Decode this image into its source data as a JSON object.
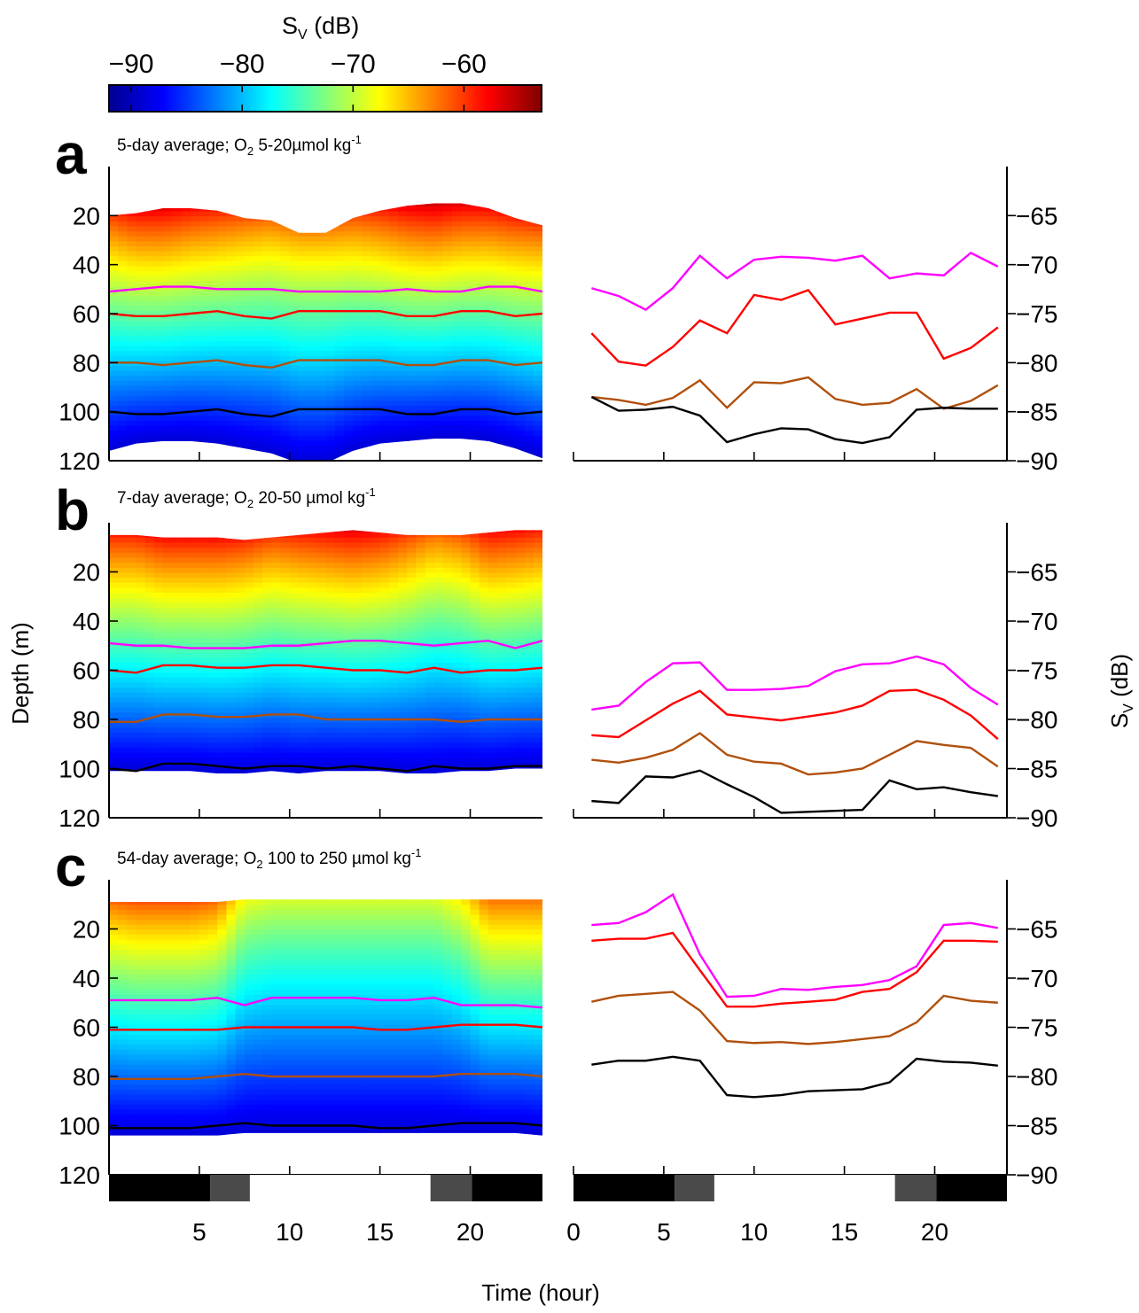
{
  "colorbar": {
    "title": "S",
    "title_sub": "V",
    "title_unit": " (dB)",
    "range": [
      -92,
      -53
    ],
    "ticks": [
      -90,
      -80,
      -70,
      -60
    ],
    "tick_labels": [
      "−90",
      "−80",
      "−70",
      "−60"
    ],
    "colormap": [
      "#00008f",
      "#0000ff",
      "#0080ff",
      "#00ffff",
      "#80ff80",
      "#ffff00",
      "#ff8000",
      "#ff0000",
      "#800000"
    ]
  },
  "axes": {
    "left_ylabel": "Depth (m)",
    "right_ylabel_main": "S",
    "right_ylabel_sub": "V",
    "right_ylabel_unit": " (dB)",
    "xlabel": "Time (hour)"
  },
  "light_bar": {
    "segments": [
      {
        "from": 0,
        "to": 5.6,
        "color": "#000000"
      },
      {
        "from": 5.6,
        "to": 7.8,
        "color": "#4a4a4a"
      },
      {
        "from": 7.8,
        "to": 17.8,
        "color": "#ffffff"
      },
      {
        "from": 17.8,
        "to": 20.1,
        "color": "#4a4a4a"
      },
      {
        "from": 20.1,
        "to": 24,
        "color": "#000000"
      }
    ]
  },
  "chart_data": [
    {
      "type": "heatmap",
      "panel": "a",
      "title": "5-day average; O",
      "title_sub": "2",
      "title_rest": " 5-20µmol kg",
      "title_sup": "-1",
      "left": {
        "xlim": [
          0,
          24
        ],
        "ylim": [
          120,
          0
        ],
        "xticks": [
          5,
          10,
          15,
          20
        ],
        "yticks": [
          20,
          40,
          60,
          80,
          100,
          120
        ],
        "x": [
          0,
          1.5,
          3,
          4.5,
          6,
          7.5,
          9,
          10.5,
          12,
          13.5,
          15,
          16.5,
          18,
          19.5,
          21,
          22.5,
          24
        ],
        "top_depth": [
          20,
          19,
          17,
          17,
          18,
          21,
          22,
          27,
          27,
          21,
          18,
          16,
          15,
          15,
          17,
          21,
          24
        ],
        "bottom_depth": [
          116,
          113,
          112,
          112,
          113,
          115,
          117,
          121,
          121,
          116,
          113,
          112,
          111,
          111,
          112,
          115,
          119
        ],
        "peak_sv": [
          -60,
          -58,
          -57,
          -58,
          -59,
          -61,
          -62,
          -63,
          -63,
          -61,
          -59,
          -57,
          -56,
          -57,
          -58,
          -59,
          -60
        ],
        "isolines": [
          {
            "name": "magenta",
            "color": "#ff00ff",
            "depth": [
              51,
              50,
              49,
              49,
              50,
              50,
              50,
              51,
              51,
              51,
              51,
              50,
              51,
              51,
              49,
              49,
              51
            ]
          },
          {
            "name": "red",
            "color": "#ff0000",
            "depth": [
              60,
              61,
              61,
              60,
              59,
              61,
              62,
              59,
              59,
              59,
              59,
              61,
              61,
              59,
              59,
              61,
              60
            ]
          },
          {
            "name": "brown",
            "color": "#b0500c",
            "depth": [
              80,
              80,
              81,
              80,
              79,
              81,
              82,
              79,
              79,
              79,
              79,
              81,
              81,
              79,
              79,
              81,
              80
            ]
          },
          {
            "name": "black",
            "color": "#000000",
            "depth": [
              100,
              101,
              101,
              100,
              99,
              101,
              102,
              99,
              99,
              99,
              99,
              101,
              101,
              99,
              99,
              101,
              100
            ]
          }
        ]
      },
      "right": {
        "xlim": [
          0,
          24
        ],
        "ylim": [
          -90,
          -60
        ],
        "xticks": [
          0,
          5,
          10,
          15,
          20
        ],
        "yticks": [
          -90,
          -85,
          -80,
          -75,
          -70,
          -65
        ],
        "ytick_labels": [
          "−90",
          "−85",
          "−80",
          "−75",
          "−70",
          "−65"
        ],
        "x": [
          1,
          2.5,
          4,
          5.5,
          7,
          8.5,
          10,
          11.5,
          13,
          14.5,
          16,
          17.5,
          19,
          20.5,
          22,
          23.5
        ],
        "series": [
          {
            "name": "magenta",
            "color": "#ff00ff",
            "values": [
              -72.4,
              -73.2,
              -74.6,
              -72.4,
              -69.1,
              -71.4,
              -69.5,
              -69.2,
              -69.3,
              -69.6,
              -69.1,
              -71.4,
              -70.9,
              -71.1,
              -68.8,
              -70.2
            ]
          },
          {
            "name": "red",
            "color": "#ff0000",
            "values": [
              -77,
              -79.9,
              -80.3,
              -78.4,
              -75.7,
              -77,
              -73.1,
              -73.6,
              -72.6,
              -76.1,
              -75.5,
              -74.9,
              -74.9,
              -79.6,
              -78.5,
              -76.4
            ]
          },
          {
            "name": "brown",
            "color": "#b0500c",
            "values": [
              -83.5,
              -83.8,
              -84.3,
              -83.6,
              -81.8,
              -84.6,
              -82,
              -82.1,
              -81.5,
              -83.7,
              -84.3,
              -84.1,
              -82.7,
              -84.7,
              -83.9,
              -82.3
            ]
          },
          {
            "name": "black",
            "color": "#000000",
            "values": [
              -83.5,
              -84.9,
              -84.8,
              -84.5,
              -85.4,
              -88.1,
              -87.3,
              -86.7,
              -86.8,
              -87.8,
              -88.2,
              -87.6,
              -84.8,
              -84.6,
              -84.7,
              -84.7
            ]
          }
        ]
      }
    },
    {
      "type": "heatmap",
      "panel": "b",
      "title": "7-day average; O",
      "title_sub": "2",
      "title_rest": " 20-50 µmol kg",
      "title_sup": "-1",
      "left": {
        "xlim": [
          0,
          24
        ],
        "ylim": [
          120,
          0
        ],
        "xticks": [
          5,
          10,
          15,
          20
        ],
        "yticks": [
          20,
          40,
          60,
          80,
          100,
          120
        ],
        "x": [
          0,
          1.5,
          3,
          4.5,
          6,
          7.5,
          9,
          10.5,
          12,
          13.5,
          15,
          16.5,
          18,
          19.5,
          21,
          22.5,
          24
        ],
        "top_depth": [
          5,
          5,
          6,
          6,
          6,
          7,
          6,
          5,
          4,
          3,
          4,
          5,
          5,
          5,
          4,
          3,
          3
        ],
        "bottom_depth": [
          101,
          101,
          101,
          101,
          102,
          102,
          101,
          102,
          101,
          101,
          101,
          102,
          102,
          101,
          101,
          100,
          100
        ],
        "peak_sv": [
          -59,
          -59,
          -58,
          -58,
          -58,
          -59,
          -60,
          -59,
          -58,
          -57,
          -58,
          -60,
          -62,
          -61,
          -58,
          -58,
          -59
        ],
        "isolines": [
          {
            "name": "magenta",
            "color": "#ff00ff",
            "depth": [
              49,
              50,
              50,
              51,
              51,
              51,
              50,
              50,
              49,
              48,
              48,
              49,
              50,
              49,
              48,
              51,
              48
            ]
          },
          {
            "name": "red",
            "color": "#ff0000",
            "depth": [
              60,
              61,
              58,
              58,
              59,
              59,
              58,
              58,
              59,
              60,
              60,
              61,
              59,
              61,
              60,
              60,
              59
            ]
          },
          {
            "name": "brown",
            "color": "#b0500c",
            "depth": [
              81,
              81,
              78,
              78,
              79,
              79,
              78,
              78,
              80,
              80,
              80,
              80,
              80,
              81,
              80,
              80,
              80
            ]
          },
          {
            "name": "black",
            "color": "#000000",
            "depth": [
              100,
              101,
              98,
              98,
              99,
              100,
              99,
              99,
              100,
              99,
              100,
              101,
              99,
              100,
              100,
              99,
              99
            ]
          }
        ]
      },
      "right": {
        "xlim": [
          0,
          24
        ],
        "ylim": [
          -90,
          -60
        ],
        "xticks": [
          0,
          5,
          10,
          15,
          20
        ],
        "yticks": [
          -90,
          -85,
          -80,
          -75,
          -70,
          -65
        ],
        "ytick_labels": [
          "−90",
          "−85",
          "−80",
          "−75",
          "−70",
          "−65"
        ],
        "x": [
          1,
          2.5,
          4,
          5.5,
          7,
          8.5,
          10,
          11.5,
          13,
          14.5,
          16,
          17.5,
          19,
          20.5,
          22,
          23.5
        ],
        "series": [
          {
            "name": "magenta",
            "color": "#ff00ff",
            "values": [
              -79,
              -78.6,
              -76.2,
              -74.3,
              -74.2,
              -77,
              -77,
              -76.9,
              -76.6,
              -75.1,
              -74.4,
              -74.3,
              -73.6,
              -74.4,
              -76.8,
              -78.5
            ]
          },
          {
            "name": "red",
            "color": "#ff0000",
            "values": [
              -81.6,
              -81.8,
              -80.1,
              -78.4,
              -77.1,
              -79.5,
              -79.8,
              -80.1,
              -79.7,
              -79.3,
              -78.6,
              -77.1,
              -77,
              -78,
              -79.6,
              -82
            ]
          },
          {
            "name": "brown",
            "color": "#b0500c",
            "values": [
              -84.1,
              -84.4,
              -83.9,
              -83.1,
              -81.4,
              -83.6,
              -84.3,
              -84.5,
              -85.6,
              -85.4,
              -85,
              -83.6,
              -82.2,
              -82.6,
              -82.9,
              -84.8
            ]
          },
          {
            "name": "black",
            "color": "#000000",
            "values": [
              -88.3,
              -88.5,
              -85.8,
              -85.9,
              -85.2,
              -86.6,
              -87.9,
              -89.5,
              -89.4,
              -89.3,
              -89.2,
              -86.2,
              -87.1,
              -86.9,
              -87.4,
              -87.8
            ]
          }
        ]
      }
    },
    {
      "type": "heatmap",
      "panel": "c",
      "title": "54-day average; O",
      "title_sub": "2",
      "title_rest": " 100 to 250 µmol kg",
      "title_sup": "-1",
      "left": {
        "xlim": [
          0,
          24
        ],
        "ylim": [
          120,
          0
        ],
        "xticks": [
          5,
          10,
          15,
          20
        ],
        "yticks": [
          20,
          40,
          60,
          80,
          100,
          120
        ],
        "x": [
          0,
          1.5,
          3,
          4.5,
          6,
          7.5,
          9,
          10.5,
          12,
          13.5,
          15,
          16.5,
          18,
          19.5,
          21,
          22.5,
          24
        ],
        "top_depth": [
          9,
          9,
          9,
          9,
          9,
          8,
          8,
          8,
          8,
          8,
          8,
          8,
          8,
          8,
          8,
          8,
          8
        ],
        "bottom_depth": [
          104,
          104,
          104,
          104,
          104,
          103,
          103,
          103,
          103,
          103,
          103,
          103,
          103,
          103,
          103,
          103,
          104
        ],
        "peak_sv": [
          -62,
          -61,
          -61,
          -61,
          -62,
          -68,
          -69,
          -69,
          -69,
          -69,
          -69,
          -69,
          -69,
          -67,
          -62,
          -62,
          -62
        ],
        "isolines": [
          {
            "name": "magenta",
            "color": "#ff00ff",
            "depth": [
              49,
              49,
              49,
              49,
              48,
              51,
              48,
              48,
              48,
              48,
              49,
              49,
              48,
              51,
              51,
              51,
              52
            ]
          },
          {
            "name": "red",
            "color": "#ff0000",
            "depth": [
              61,
              61,
              61,
              61,
              61,
              60,
              60,
              60,
              60,
              60,
              61,
              61,
              60,
              59,
              59,
              59,
              60
            ]
          },
          {
            "name": "brown",
            "color": "#b0500c",
            "depth": [
              81,
              81,
              81,
              81,
              80,
              79,
              80,
              80,
              80,
              80,
              80,
              80,
              80,
              79,
              79,
              79,
              80
            ]
          },
          {
            "name": "black",
            "color": "#000000",
            "depth": [
              101,
              101,
              101,
              101,
              100,
              99,
              100,
              100,
              100,
              100,
              101,
              101,
              100,
              99,
              99,
              99,
              100
            ]
          }
        ]
      },
      "right": {
        "xlim": [
          0,
          24
        ],
        "ylim": [
          -90,
          -60
        ],
        "xticks": [
          0,
          5,
          10,
          15,
          20
        ],
        "yticks": [
          -90,
          -85,
          -80,
          -75,
          -70,
          -65
        ],
        "ytick_labels": [
          "−90",
          "−85",
          "−80",
          "−75",
          "−70",
          "−65"
        ],
        "x": [
          1,
          2.5,
          4,
          5.5,
          7,
          8.5,
          10,
          11.5,
          13,
          14.5,
          16,
          17.5,
          19,
          20.5,
          22,
          23.5
        ],
        "series": [
          {
            "name": "magenta",
            "color": "#ff00ff",
            "values": [
              -64.6,
              -64.4,
              -63.3,
              -61.5,
              -67.6,
              -71.9,
              -71.8,
              -71.1,
              -71.2,
              -70.9,
              -70.7,
              -70.2,
              -68.8,
              -64.6,
              -64.4,
              -64.9
            ]
          },
          {
            "name": "red",
            "color": "#ff0000",
            "values": [
              -66.2,
              -66,
              -66,
              -65.4,
              -69.2,
              -72.9,
              -72.9,
              -72.6,
              -72.4,
              -72.2,
              -71.4,
              -71.1,
              -69.4,
              -66.2,
              -66.2,
              -66.3
            ]
          },
          {
            "name": "brown",
            "color": "#b0500c",
            "values": [
              -72.4,
              -71.8,
              -71.6,
              -71.4,
              -73.3,
              -76.4,
              -76.6,
              -76.5,
              -76.7,
              -76.5,
              -76.2,
              -75.9,
              -74.5,
              -71.8,
              -72.3,
              -72.5
            ]
          },
          {
            "name": "black",
            "color": "#000000",
            "values": [
              -78.8,
              -78.4,
              -78.4,
              -78,
              -78.4,
              -81.9,
              -82.1,
              -81.9,
              -81.5,
              -81.4,
              -81.3,
              -80.6,
              -78.2,
              -78.5,
              -78.6,
              -78.9
            ]
          }
        ]
      }
    }
  ]
}
